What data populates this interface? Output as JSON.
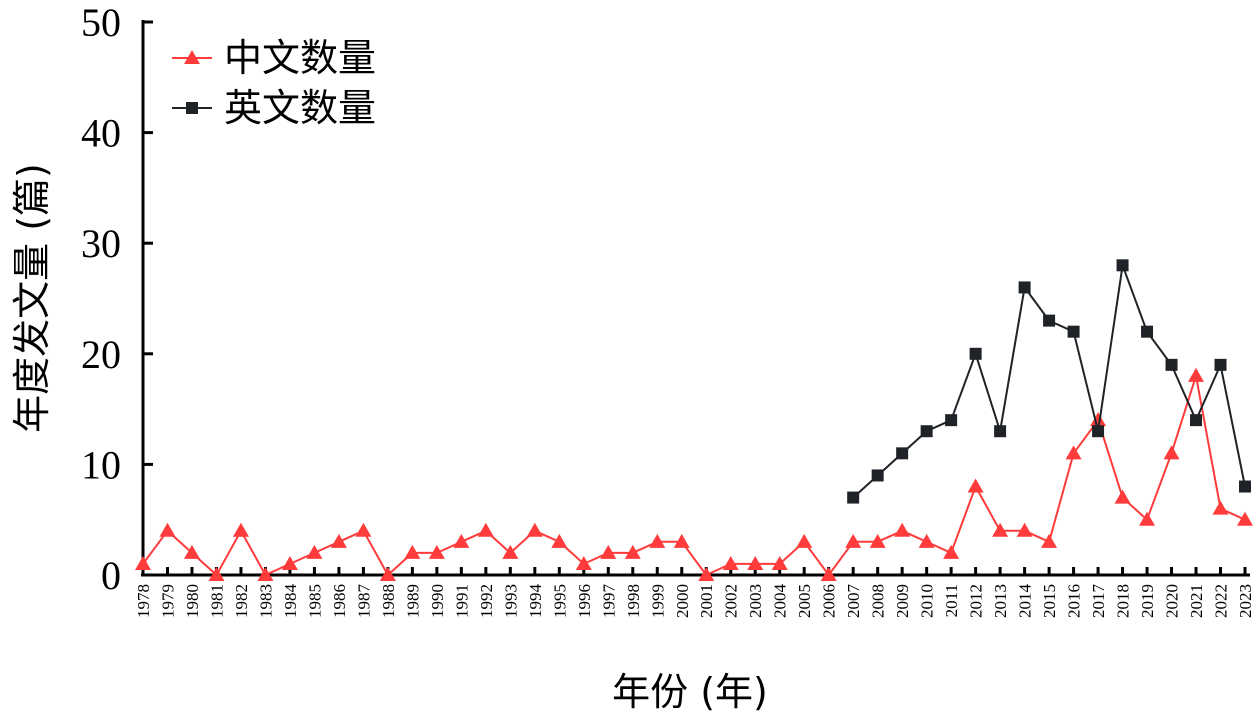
{
  "chart_data": {
    "type": "line",
    "xlabel": "年份 (年)",
    "ylabel": "年度发文量 (篇)",
    "ylim": [
      0,
      50
    ],
    "yticks": [
      0,
      10,
      20,
      30,
      40,
      50
    ],
    "legend_position": "top-left",
    "grid": false,
    "categories": [
      "1978",
      "1979",
      "1980",
      "1981",
      "1982",
      "1983",
      "1984",
      "1985",
      "1986",
      "1987",
      "1988",
      "1989",
      "1990",
      "1991",
      "1992",
      "1993",
      "1994",
      "1995",
      "1996",
      "1997",
      "1998",
      "1999",
      "2000",
      "2001",
      "2002",
      "2003",
      "2004",
      "2005",
      "2006",
      "2007",
      "2008",
      "2009",
      "2010",
      "2011",
      "2012",
      "2013",
      "2014",
      "2015",
      "2016",
      "2017",
      "2018",
      "2019",
      "2020",
      "2021",
      "2022",
      "2023"
    ],
    "series": [
      {
        "name": "中文数量",
        "color": "#ff3b3b",
        "marker": "triangle",
        "values": [
          1,
          4,
          2,
          0,
          4,
          0,
          1,
          2,
          3,
          4,
          0,
          2,
          2,
          3,
          4,
          2,
          4,
          3,
          1,
          2,
          2,
          3,
          3,
          0,
          1,
          1,
          1,
          3,
          0,
          3,
          3,
          4,
          3,
          2,
          8,
          4,
          4,
          3,
          11,
          14,
          7,
          5,
          11,
          18,
          6,
          5
        ]
      },
      {
        "name": "英文数量",
        "color": "#1f2328",
        "marker": "square",
        "values": [
          null,
          null,
          null,
          null,
          null,
          null,
          null,
          null,
          null,
          null,
          null,
          null,
          null,
          null,
          null,
          null,
          null,
          null,
          null,
          null,
          null,
          null,
          null,
          null,
          null,
          null,
          null,
          null,
          null,
          7,
          9,
          11,
          13,
          14,
          20,
          13,
          26,
          23,
          22,
          13,
          28,
          22,
          19,
          14,
          19,
          8
        ]
      }
    ]
  }
}
